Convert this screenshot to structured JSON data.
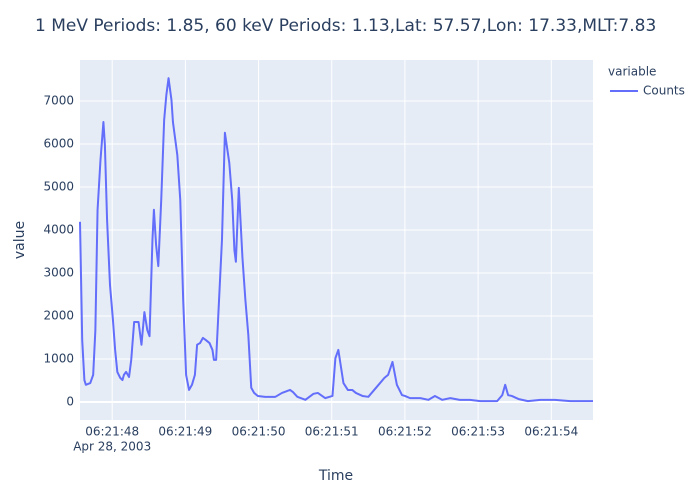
{
  "chart_data": {
    "type": "line",
    "title": "1 MeV Periods: 1.85, 60 keV Periods: 1.13,Lat: 57.57,Lon: 17.33,MLT:7.83",
    "x_label": "Time",
    "y_label": "value",
    "legend_title": "variable",
    "x_date_label": "Apr 28, 2003",
    "x": [
      "2003-04-28T06:21:47.56",
      "2003-04-28T06:21:47.59",
      "2003-04-28T06:21:47.62",
      "2003-04-28T06:21:47.64",
      "2003-04-28T06:21:47.70",
      "2003-04-28T06:21:47.74",
      "2003-04-28T06:21:47.77",
      "2003-04-28T06:21:47.80",
      "2003-04-28T06:21:47.84",
      "2003-04-28T06:21:47.88",
      "2003-04-28T06:21:47.90",
      "2003-04-28T06:21:47.93",
      "2003-04-28T06:21:47.97",
      "2003-04-28T06:21:48.01",
      "2003-04-28T06:21:48.04",
      "2003-04-28T06:21:48.07",
      "2003-04-28T06:21:48.11",
      "2003-04-28T06:21:48.14",
      "2003-04-28T06:21:48.16",
      "2003-04-28T06:21:48.19",
      "2003-04-28T06:21:48.23",
      "2003-04-28T06:21:48.26",
      "2003-04-28T06:21:48.30",
      "2003-04-28T06:21:48.36",
      "2003-04-28T06:21:48.40",
      "2003-04-28T06:21:48.44",
      "2003-04-28T06:21:48.48",
      "2003-04-28T06:21:48.51",
      "2003-04-28T06:21:48.55",
      "2003-04-28T06:21:48.57",
      "2003-04-28T06:21:48.60",
      "2003-04-28T06:21:48.63",
      "2003-04-28T06:21:48.67",
      "2003-04-28T06:21:48.71",
      "2003-04-28T06:21:48.74",
      "2003-04-28T06:21:48.77",
      "2003-04-28T06:21:48.81",
      "2003-04-28T06:21:48.83",
      "2003-04-28T06:21:48.89",
      "2003-04-28T06:21:48.93",
      "2003-04-28T06:21:48.97",
      "2003-04-28T06:21:49.01",
      "2003-04-28T06:21:49.05",
      "2003-04-28T06:21:49.09",
      "2003-04-28T06:21:49.13",
      "2003-04-28T06:21:49.16",
      "2003-04-28T06:21:49.20",
      "2003-04-28T06:21:49.24",
      "2003-04-28T06:21:49.28",
      "2003-04-28T06:21:49.33",
      "2003-04-28T06:21:49.37",
      "2003-04-28T06:21:49.39",
      "2003-04-28T06:21:49.42",
      "2003-04-28T06:21:49.46",
      "2003-04-28T06:21:49.50",
      "2003-04-28T06:21:49.54",
      "2003-04-28T06:21:49.60",
      "2003-04-28T06:21:49.64",
      "2003-04-28T06:21:49.67",
      "2003-04-28T06:21:49.69",
      "2003-04-28T06:21:49.73",
      "2003-04-28T06:21:49.78",
      "2003-04-28T06:21:49.82",
      "2003-04-28T06:21:49.86",
      "2003-04-28T06:21:49.90",
      "2003-04-28T06:21:49.94",
      "2003-04-28T06:21:49.99",
      "2003-04-28T06:21:50.09",
      "2003-04-28T06:21:50.23",
      "2003-04-28T06:21:50.32",
      "2003-04-28T06:21:50.43",
      "2003-04-28T06:21:50.47",
      "2003-04-28T06:21:50.53",
      "2003-04-28T06:21:50.64",
      "2003-04-28T06:21:50.75",
      "2003-04-28T06:21:50.81",
      "2003-04-28T06:21:50.91",
      "2003-04-28T06:21:51.01",
      "2003-04-28T06:21:51.05",
      "2003-04-28T06:21:51.09",
      "2003-04-28T06:21:51.16",
      "2003-04-28T06:21:51.22",
      "2003-04-28T06:21:51.28",
      "2003-04-28T06:21:51.33",
      "2003-04-28T06:21:51.42",
      "2003-04-28T06:21:51.50",
      "2003-04-28T06:21:51.58",
      "2003-04-28T06:21:51.66",
      "2003-04-28T06:21:51.72",
      "2003-04-28T06:21:51.77",
      "2003-04-28T06:21:51.83",
      "2003-04-28T06:21:51.89",
      "2003-04-28T06:21:51.96",
      "2003-04-28T06:21:52.00",
      "2003-04-28T06:21:52.07",
      "2003-04-28T06:21:52.21",
      "2003-04-28T06:21:52.32",
      "2003-04-28T06:21:52.41",
      "2003-04-28T06:21:52.51",
      "2003-04-28T06:21:52.62",
      "2003-04-28T06:21:52.75",
      "2003-04-28T06:21:52.89",
      "2003-04-28T06:21:53.03",
      "2003-04-28T06:21:53.26",
      "2003-04-28T06:21:53.33",
      "2003-04-28T06:21:53.37",
      "2003-04-28T06:21:53.41",
      "2003-04-28T06:21:53.46",
      "2003-04-28T06:21:53.55",
      "2003-04-28T06:21:53.68",
      "2003-04-28T06:21:53.85",
      "2003-04-28T06:21:54.05",
      "2003-04-28T06:21:54.26",
      "2003-04-28T06:21:54.57"
    ],
    "series": [
      {
        "name": "Counts",
        "color": "#636efa",
        "values": [
          4190,
          1440,
          510,
          400,
          440,
          630,
          1670,
          4470,
          5630,
          6510,
          5980,
          4230,
          2720,
          1910,
          1210,
          700,
          560,
          510,
          630,
          700,
          580,
          980,
          1860,
          1860,
          1330,
          2090,
          1670,
          1530,
          3770,
          4470,
          3650,
          3160,
          4700,
          6560,
          7140,
          7530,
          7020,
          6510,
          5740,
          4700,
          2370,
          630,
          280,
          400,
          630,
          1330,
          1370,
          1490,
          1440,
          1370,
          1210,
          980,
          980,
          2370,
          3770,
          6260,
          5560,
          4700,
          3530,
          3260,
          4980,
          3350,
          2370,
          1560,
          330,
          210,
          140,
          120,
          120,
          210,
          280,
          230,
          120,
          50,
          190,
          210,
          90,
          140,
          1020,
          1210,
          440,
          280,
          280,
          210,
          140,
          120,
          280,
          440,
          560,
          630,
          930,
          400,
          160,
          140,
          90,
          90,
          50,
          140,
          50,
          90,
          50,
          50,
          20,
          20,
          160,
          400,
          160,
          140,
          70,
          20,
          50,
          50,
          20,
          20
        ]
      }
    ],
    "xlim": [
      "2003-04-28T06:21:47.56",
      "2003-04-28T06:21:54.57"
    ],
    "xticks": [
      {
        "value": "2003-04-28T06:21:48",
        "label": "06:21:48"
      },
      {
        "value": "2003-04-28T06:21:49",
        "label": "06:21:49"
      },
      {
        "value": "2003-04-28T06:21:50",
        "label": "06:21:50"
      },
      {
        "value": "2003-04-28T06:21:51",
        "label": "06:21:51"
      },
      {
        "value": "2003-04-28T06:21:52",
        "label": "06:21:52"
      },
      {
        "value": "2003-04-28T06:21:53",
        "label": "06:21:53"
      },
      {
        "value": "2003-04-28T06:21:54",
        "label": "06:21:54"
      }
    ],
    "ylim": [
      -419,
      7953
    ],
    "yticks": [
      0,
      1000,
      2000,
      3000,
      4000,
      5000,
      6000,
      7000
    ],
    "grid": true,
    "legend_position": "right"
  }
}
